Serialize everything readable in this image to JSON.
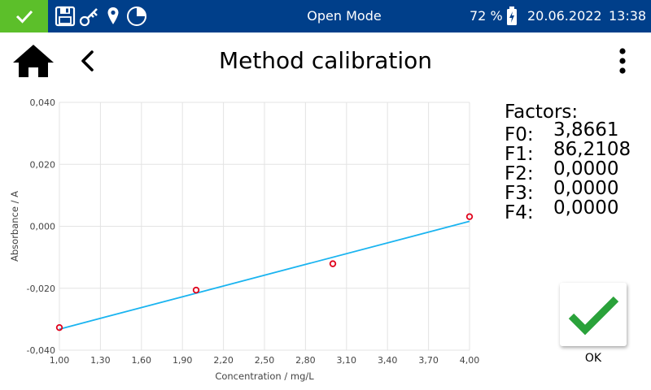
{
  "status_bar": {
    "mode": "Open Mode",
    "battery": "72 %",
    "date": "20.06.2022",
    "time": "13:38",
    "icons": [
      "check-icon",
      "save-icon",
      "key-icon",
      "location-pin-icon",
      "pie-clock-icon",
      "battery-charging-icon"
    ],
    "colors": {
      "bar": "#003f8a",
      "ok": "#5cbf2a"
    }
  },
  "header": {
    "title": "Method calibration",
    "icons": [
      "home-icon",
      "back-chevron-icon",
      "more-vertical-icon"
    ]
  },
  "factors": {
    "title": "Factors:",
    "items": [
      {
        "label": "F0:",
        "value": "3,8661"
      },
      {
        "label": "F1:",
        "value": "86,2108"
      },
      {
        "label": "F2:",
        "value": "0,0000"
      },
      {
        "label": "F3:",
        "value": "0,0000"
      },
      {
        "label": "F4:",
        "value": "0,0000"
      }
    ]
  },
  "ok_button": {
    "label": "OK",
    "icon": "checkmark-icon",
    "color": "#2aa23a"
  },
  "chart_data": {
    "type": "scatter",
    "xlabel": "Concentration / mg/L",
    "ylabel": "Absorbance / A",
    "xlim": [
      1.0,
      4.0
    ],
    "ylim": [
      -0.04,
      0.04
    ],
    "x_ticks": [
      "1,00",
      "1,30",
      "1,60",
      "1,90",
      "2,20",
      "2,50",
      "2,80",
      "3,10",
      "3,40",
      "3,70",
      "4,00"
    ],
    "x_tick_values": [
      1.0,
      1.3,
      1.6,
      1.9,
      2.2,
      2.5,
      2.8,
      3.1,
      3.4,
      3.7,
      4.0
    ],
    "y_ticks": [
      "0,040",
      "0,020",
      "0,000",
      "-0,020",
      "-0,040"
    ],
    "y_tick_values": [
      0.04,
      0.02,
      0.0,
      -0.02,
      -0.04
    ],
    "points": [
      {
        "x": 1.0,
        "y": -0.0327
      },
      {
        "x": 2.0,
        "y": -0.0206
      },
      {
        "x": 3.0,
        "y": -0.0121
      },
      {
        "x": 4.0,
        "y": 0.0031
      }
    ],
    "fit_line": {
      "x": [
        1.0,
        4.0
      ],
      "y": [
        -0.0332,
        0.0016
      ]
    },
    "grid": true,
    "colors": {
      "points": "#e0001a",
      "fit": "#1ab4f0",
      "grid": "#e3e3e3"
    }
  }
}
